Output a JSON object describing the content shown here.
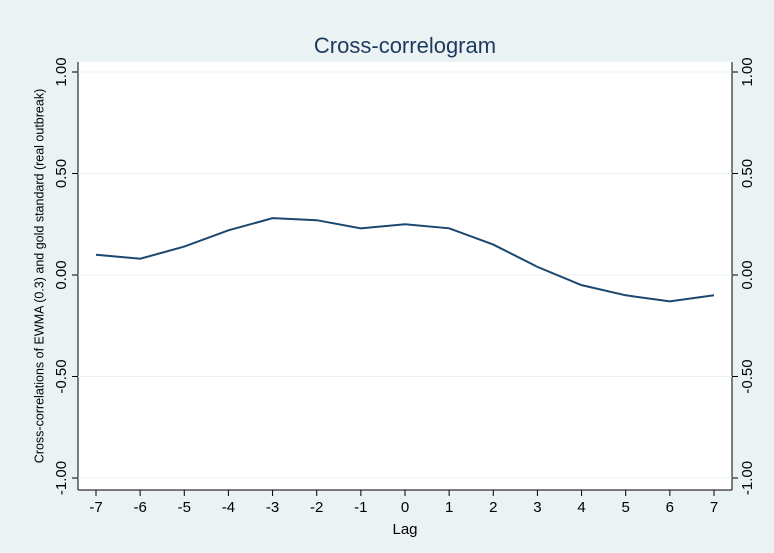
{
  "chart_data": {
    "type": "line",
    "title": "Cross-correlogram",
    "x_label": "Lag",
    "y_label": "Cross-correlations of EWMA (0.3) and gold standard (real outbreak)",
    "x": [
      -7,
      -6,
      -5,
      -4,
      -3,
      -2,
      -1,
      0,
      1,
      2,
      3,
      4,
      5,
      6,
      7
    ],
    "series": [
      {
        "name": "Cross-correlation",
        "color": "#1a476f",
        "values": [
          0.1,
          0.08,
          0.14,
          0.22,
          0.28,
          0.27,
          0.23,
          0.25,
          0.23,
          0.15,
          0.04,
          -0.05,
          -0.1,
          -0.13,
          -0.1
        ]
      }
    ],
    "xlim": [
      -7,
      7
    ],
    "xticks": [
      -7,
      -6,
      -5,
      -4,
      -3,
      -2,
      -1,
      0,
      1,
      2,
      3,
      4,
      5,
      6,
      7
    ],
    "ylim": [
      -1,
      1
    ],
    "yticks": [
      {
        "value": -1,
        "label": "-1.00"
      },
      {
        "value": -0.5,
        "label": "-0.50"
      },
      {
        "value": 0,
        "label": "0.00"
      },
      {
        "value": 0.5,
        "label": "0.50"
      },
      {
        "value": 1,
        "label": "1.00"
      }
    ],
    "grid": true,
    "legend": false
  }
}
